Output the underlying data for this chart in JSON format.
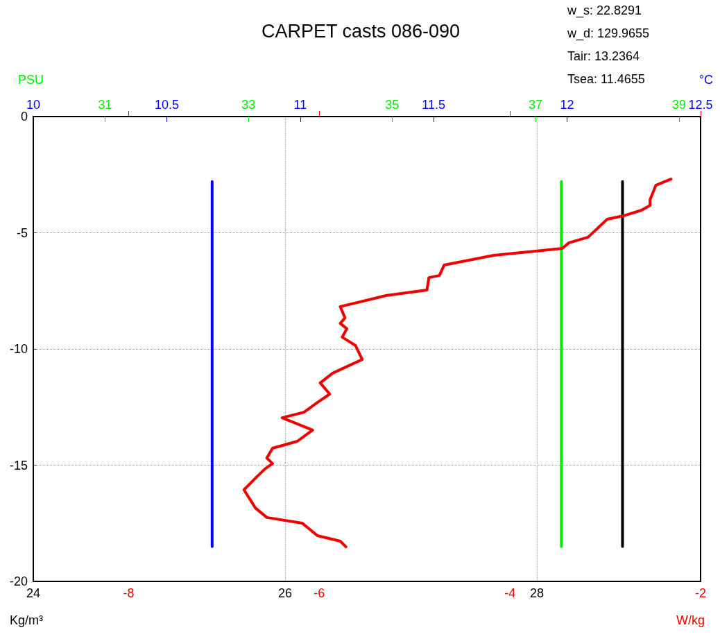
{
  "chart_data": [
    {
      "type": "line",
      "title": "CARPET casts 086-090",
      "annotations": [
        "w_s: 22.8291",
        "w_d: 129.9655",
        "Tair: 13.2364",
        "Tsea: 11.4655"
      ],
      "xlabel": "Kg/m³",
      "x2label": "°C",
      "xlim": [
        24,
        29.3
      ],
      "xticks": [
        24,
        26,
        28
      ],
      "x2lim": [
        10,
        12.5
      ],
      "x2ticks": [
        10,
        10.5,
        11,
        11.5,
        12,
        12.5
      ],
      "ylim": [
        -20,
        0
      ],
      "yticks": [
        0,
        -5,
        -10,
        -15,
        -20
      ],
      "grid": true,
      "series": [
        {
          "color": "#0000ff",
          "axis": "x2",
          "x": [
            10.67,
            10.67
          ],
          "values": [
            -2.8,
            -18.5
          ]
        },
        {
          "color": "#000000",
          "x": [
            28.68,
            28.68
          ],
          "values": [
            -2.8,
            -18.5
          ]
        }
      ]
    },
    {
      "type": "line",
      "xlabel": "W/kg",
      "x2label": "PSU",
      "xlim": [
        -9,
        -2
      ],
      "xticks": [
        -8,
        -6,
        -4,
        -2
      ],
      "x2lim": [
        30,
        39.3
      ],
      "x2ticks": [
        31,
        33,
        35,
        37,
        39
      ],
      "ylim": [
        -20,
        0
      ],
      "tick_labels": "x",
      "series": [
        {
          "color": "#00ee00",
          "axis": "x2",
          "x": [
            37.36,
            37.36
          ],
          "values": [
            -2.8,
            -18.5
          ]
        },
        {
          "color": "#ee0000",
          "x": [
            -2.31,
            -2.47,
            -2.53,
            -2.53,
            -2.62,
            -2.81,
            -2.98,
            -3.18,
            -3.38,
            -3.45,
            -4.17,
            -4.69,
            -4.74,
            -4.85,
            -4.87,
            -5.3,
            -5.78,
            -5.73,
            -5.78,
            -5.71,
            -5.76,
            -5.62,
            -5.55,
            -5.86,
            -5.99,
            -5.89,
            -6.02,
            -6.16,
            -6.39,
            -6.07,
            -6.23,
            -6.49,
            -6.55,
            -6.49,
            -6.57,
            -6.66,
            -6.79,
            -6.67,
            -6.55,
            -6.18,
            -6.02,
            -5.78,
            -5.72
          ],
          "values": [
            -2.69,
            -2.96,
            -3.58,
            -3.82,
            -4.03,
            -4.27,
            -4.42,
            -5.19,
            -5.43,
            -5.67,
            -5.97,
            -6.39,
            -6.84,
            -6.93,
            -7.46,
            -7.7,
            -8.18,
            -8.66,
            -8.9,
            -9.13,
            -9.49,
            -9.85,
            -10.45,
            -11.04,
            -11.46,
            -11.94,
            -12.3,
            -12.72,
            -12.96,
            -13.49,
            -13.97,
            -14.27,
            -14.69,
            -14.93,
            -15.16,
            -15.52,
            -16.06,
            -16.84,
            -17.25,
            -17.49,
            -18.03,
            -18.27,
            -18.51
          ]
        }
      ]
    }
  ]
}
